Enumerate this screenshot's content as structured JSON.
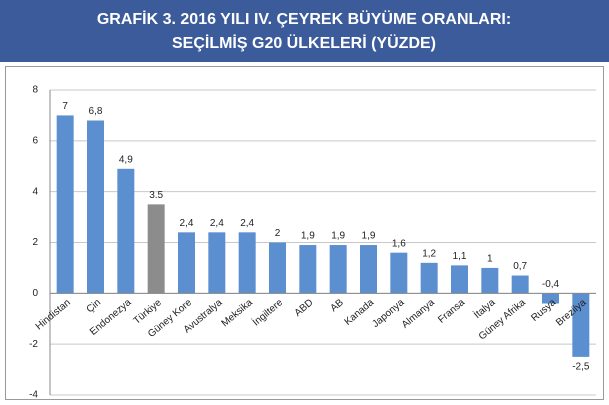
{
  "chart_data": {
    "type": "bar",
    "title": [
      "GRAFİK 3. 2016 YILI IV. ÇEYREK BÜYÜME ORANLARI:",
      "SEÇİLMİŞ G20 ÜLKELERİ (YÜZDE)"
    ],
    "categories": [
      "Hindistan",
      "Çin",
      "Endonezya",
      "Türkiye",
      "Güney Kore",
      "Avustralya",
      "Meksika",
      "İngiltere",
      "ABD",
      "AB",
      "Kanada",
      "Japonya",
      "Almanya",
      "Fransa",
      "İtalya",
      "Güney Afrika",
      "Rusya",
      "Brezilya"
    ],
    "values": [
      7,
      6.8,
      4.9,
      3.5,
      2.4,
      2.4,
      2.4,
      2,
      1.9,
      1.9,
      1.9,
      1.6,
      1.2,
      1.1,
      1,
      0.7,
      -0.4,
      -2.5
    ],
    "value_labels": [
      "7",
      "6,8",
      "4,9",
      "3.5",
      "2,4",
      "2,4",
      "2,4",
      "2",
      "1,9",
      "1,9",
      "1,9",
      "1,6",
      "1,2",
      "1,1",
      "1",
      "0,7",
      "-0,4",
      "-2,5"
    ],
    "colors": [
      "#5b8fd0",
      "#5b8fd0",
      "#5b8fd0",
      "#8c8c8c",
      "#5b8fd0",
      "#5b8fd0",
      "#5b8fd0",
      "#5b8fd0",
      "#5b8fd0",
      "#5b8fd0",
      "#5b8fd0",
      "#5b8fd0",
      "#5b8fd0",
      "#5b8fd0",
      "#5b8fd0",
      "#5b8fd0",
      "#5b8fd0",
      "#5b8fd0"
    ],
    "ylim": [
      -4,
      8
    ],
    "yticks": [
      -4,
      -2,
      0,
      2,
      4,
      6,
      8
    ],
    "grid": true
  }
}
